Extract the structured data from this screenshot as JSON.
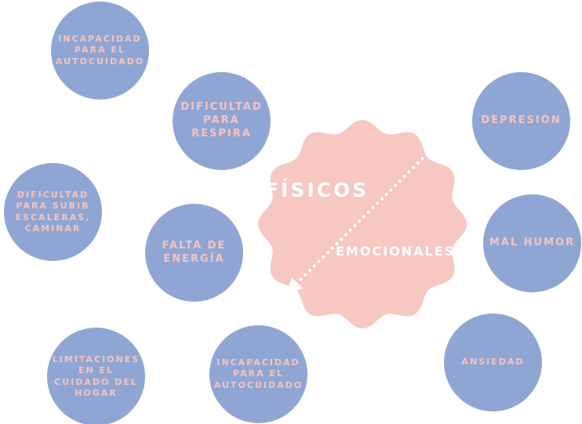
{
  "colors": {
    "circle_fill": "#8fa6d4",
    "circle_text": "#f7c3be",
    "center_fill": "#f7c7c2",
    "center_text": "#ffffff"
  },
  "center": {
    "top_label": "FÍSICOS",
    "bottom_label": "EMOCIONALES"
  },
  "nodes": [
    {
      "id": "incapacidad-autocuidado-top",
      "label": "INCAPACIDAD PARA EL AUTOCUIDADO"
    },
    {
      "id": "dificultad-respirar",
      "label": "DIFICULTAD PARA RESPIRA"
    },
    {
      "id": "dificultad-escaleras",
      "label": "DIFICULTAD PARA SUBIR ESCALERAS, CAMINAR"
    },
    {
      "id": "falta-energia",
      "label": "FALTA DE ENERGÍA"
    },
    {
      "id": "limitaciones-hogar",
      "label": "LIMITACIONES EN EL CUIDADO DEL HOGAR"
    },
    {
      "id": "incapacidad-autocuidado-bottom",
      "label": "INCAPACIDAD PARA EL AUTOCUIDADO"
    },
    {
      "id": "depresion",
      "label": "DEPRESIÓN"
    },
    {
      "id": "mal-humor",
      "label": "MAL HUMOR"
    },
    {
      "id": "ansiedad",
      "label": "ANSIEDAD"
    }
  ]
}
